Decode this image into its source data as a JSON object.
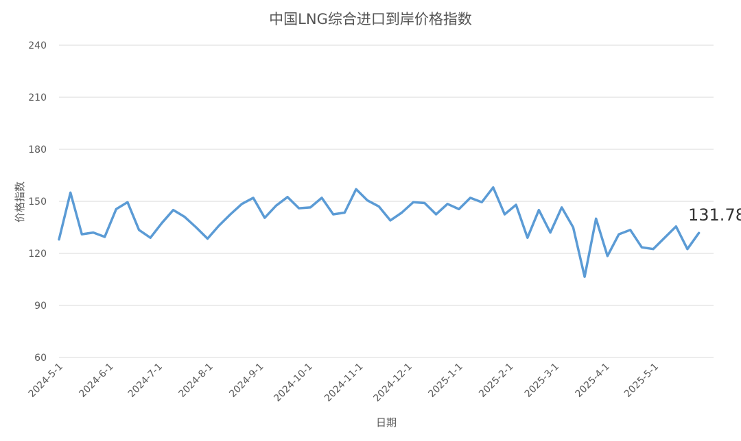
{
  "chart_data": {
    "type": "line",
    "title": "中国LNG综合进口到岸价格指数",
    "xlabel": "日期",
    "ylabel": "价格指数",
    "ylim": [
      60,
      240
    ],
    "yticks": [
      60,
      90,
      120,
      150,
      180,
      210,
      240
    ],
    "grid": true,
    "legend": "none",
    "x_tick_labels": [
      "2024-5-1",
      "2024-6-1",
      "2024-7-1",
      "2024-8-1",
      "2024-9-1",
      "2024-10-1",
      "2024-11-1",
      "2024-12-1",
      "2025-1-1",
      "2025-2-1",
      "2025-3-1",
      "2025-4-1",
      "2025-5-1"
    ],
    "colors": {
      "line": "#5b9bd5",
      "grid": "#d9d9d9",
      "text": "#595959"
    },
    "annotation": {
      "text": "131.78"
    },
    "series": [
      {
        "x": [
          "2024-05-01",
          "2024-05-08",
          "2024-05-15",
          "2024-05-22",
          "2024-05-29",
          "2024-06-05",
          "2024-06-12",
          "2024-06-19",
          "2024-06-26",
          "2024-07-03",
          "2024-07-10",
          "2024-07-17",
          "2024-07-24",
          "2024-07-31",
          "2024-08-07",
          "2024-08-14",
          "2024-08-21",
          "2024-08-28",
          "2024-09-04",
          "2024-09-11",
          "2024-09-18",
          "2024-09-25",
          "2024-10-02",
          "2024-10-09",
          "2024-10-16",
          "2024-10-23",
          "2024-10-30",
          "2024-11-06",
          "2024-11-13",
          "2024-11-20",
          "2024-11-27",
          "2024-12-04",
          "2024-12-11",
          "2024-12-18",
          "2024-12-25",
          "2025-01-01",
          "2025-01-08",
          "2025-01-15",
          "2025-01-22",
          "2025-01-29",
          "2025-02-05",
          "2025-02-12",
          "2025-02-19",
          "2025-02-26",
          "2025-03-05",
          "2025-03-12",
          "2025-03-19",
          "2025-03-26",
          "2025-04-02",
          "2025-04-09",
          "2025-04-16",
          "2025-04-23",
          "2025-04-30",
          "2025-05-07",
          "2025-05-14",
          "2025-05-21",
          "2025-05-28"
        ],
        "values": [
          128,
          155,
          131,
          132,
          129.5,
          145.5,
          149.5,
          133.5,
          129,
          137.5,
          145,
          141,
          135,
          128.5,
          136,
          142.5,
          148.5,
          152,
          140.5,
          147.5,
          152.5,
          146,
          146.5,
          152,
          142.5,
          143.5,
          157,
          150.5,
          147,
          139,
          143.5,
          149.5,
          149,
          142.5,
          148.5,
          145.5,
          152,
          149.5,
          158,
          142.5,
          148,
          129,
          145,
          132,
          146.5,
          135,
          106.5,
          140,
          118.5,
          131,
          133.5,
          123.5,
          122.5,
          129,
          135.5,
          122.5,
          131.78
        ]
      }
    ]
  }
}
